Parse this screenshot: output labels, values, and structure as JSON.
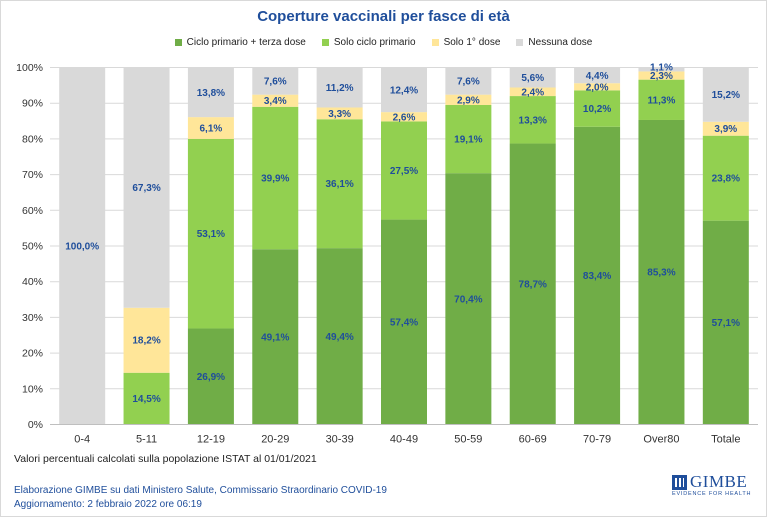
{
  "title": "Coperture vaccinali per fasce di età",
  "note": "Valori percentuali calcolati sulla popolazione ISTAT al 01/01/2021",
  "footer": {
    "line1": "Elaborazione GIMBE su dati Ministero Salute, Commissario Straordinario COVID-19",
    "line2": "Aggiornamento: 2 febbraio 2022 ore 06:19"
  },
  "logo": {
    "name": "GIMBE",
    "tagline": "EVIDENCE FOR HEALTH"
  },
  "colors": {
    "title": "#1f4e9b",
    "label": "#1f4e9b",
    "grid": "#d9d9d9",
    "axis_text": "#333333"
  },
  "chart_data": {
    "type": "bar",
    "stacked": true,
    "categories": [
      "0-4",
      "5-11",
      "12-19",
      "20-29",
      "30-39",
      "40-49",
      "50-59",
      "60-69",
      "70-79",
      "Over80",
      "Totale"
    ],
    "ylim": [
      0,
      100
    ],
    "yticks": [
      "0%",
      "10%",
      "20%",
      "30%",
      "40%",
      "50%",
      "60%",
      "70%",
      "80%",
      "90%",
      "100%"
    ],
    "legend_position": "top-center",
    "grid": true,
    "series": [
      {
        "name": "Ciclo primario + terza dose",
        "color": "#70ad47",
        "values": [
          0,
          0,
          26.9,
          49.1,
          49.4,
          57.4,
          70.4,
          78.7,
          83.4,
          85.3,
          57.1
        ],
        "labels": [
          "",
          "",
          "26,9%",
          "49,1%",
          "49,4%",
          "57,4%",
          "70,4%",
          "78,7%",
          "83,4%",
          "85,3%",
          "57,1%"
        ]
      },
      {
        "name": "Solo ciclo primario",
        "color": "#92d050",
        "values": [
          0,
          14.5,
          53.1,
          39.9,
          36.1,
          27.5,
          19.1,
          13.3,
          10.2,
          11.3,
          23.8
        ],
        "labels": [
          "",
          "14,5%",
          "53,1%",
          "39,9%",
          "36,1%",
          "27,5%",
          "19,1%",
          "13,3%",
          "10,2%",
          "11,3%",
          "23,8%"
        ]
      },
      {
        "name": "Solo 1° dose",
        "color": "#ffe699",
        "values": [
          0,
          18.2,
          6.1,
          3.4,
          3.3,
          2.6,
          2.9,
          2.4,
          2.0,
          2.3,
          3.9
        ],
        "labels": [
          "",
          "18,2%",
          "6,1%",
          "3,4%",
          "3,3%",
          "2,6%",
          "2,9%",
          "2,4%",
          "2,0%",
          "2,3%",
          "3,9%"
        ]
      },
      {
        "name": "Nessuna dose",
        "color": "#d9d9d9",
        "values": [
          100.0,
          67.3,
          13.8,
          7.6,
          11.2,
          12.4,
          7.6,
          5.6,
          4.4,
          1.1,
          15.2
        ],
        "labels": [
          "100,0%",
          "67,3%",
          "13,8%",
          "7,6%",
          "11,2%",
          "12,4%",
          "7,6%",
          "5,6%",
          "4,4%",
          "1,1%",
          "15,2%"
        ]
      }
    ]
  }
}
